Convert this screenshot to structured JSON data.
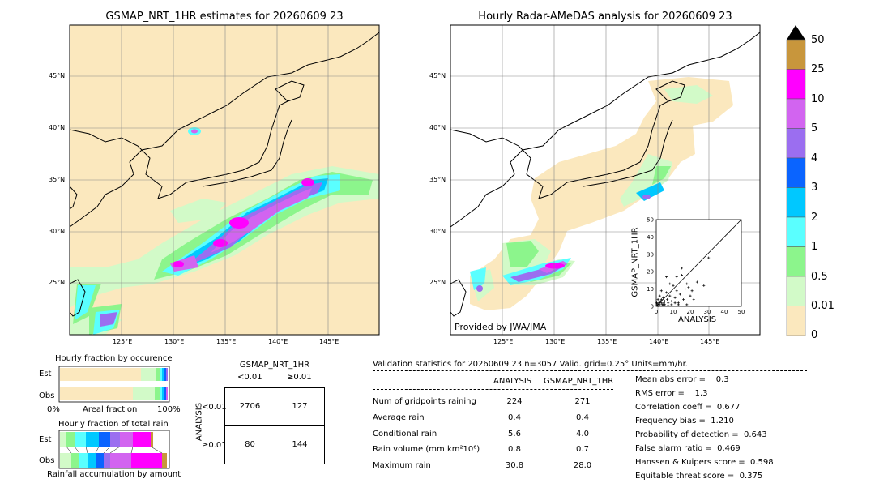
{
  "map_left": {
    "title": "GSMAP_NRT_1HR estimates for 20260609 23",
    "lat_labels": [
      "45°N",
      "40°N",
      "35°N",
      "30°N",
      "25°N"
    ],
    "lon_labels": [
      "125°E",
      "130°E",
      "135°E",
      "140°E",
      "145°E"
    ]
  },
  "map_right": {
    "title": "Hourly Radar-AMeDAS analysis for 20260609 23",
    "lat_labels": [
      "45°N",
      "40°N",
      "35°N",
      "30°N",
      "25°N"
    ],
    "lon_labels": [
      "125°E",
      "130°E",
      "135°E",
      "140°E",
      "145°E"
    ],
    "credit": "Provided by JWA/JMA"
  },
  "colorbar": {
    "labels": [
      "50",
      "25",
      "10",
      "5",
      "4",
      "3",
      "2",
      "1",
      "0.5",
      "0.01",
      "0"
    ],
    "colors": [
      "#c8963c",
      "#ff00ff",
      "#d264f0",
      "#9b6ef0",
      "#0a64ff",
      "#00c8ff",
      "#5affff",
      "#8cf58c",
      "#d2fac8",
      "#fbe8be"
    ]
  },
  "chart_data": [
    {
      "type": "scatter",
      "title": "",
      "xlabel": "ANALYSIS",
      "ylabel": "GSMAP_NRT_1HR",
      "xlim": [
        0,
        50
      ],
      "ylim": [
        0,
        50
      ],
      "ticks": [
        "0",
        "10",
        "20",
        "30",
        "40",
        "50"
      ],
      "points": [
        [
          0.5,
          0.5
        ],
        [
          1,
          0.3
        ],
        [
          1.5,
          2
        ],
        [
          2,
          1
        ],
        [
          2.5,
          3
        ],
        [
          3,
          2
        ],
        [
          3.5,
          1
        ],
        [
          4,
          5
        ],
        [
          4.5,
          2
        ],
        [
          5,
          3
        ],
        [
          6,
          8
        ],
        [
          6.5,
          4
        ],
        [
          7,
          2
        ],
        [
          8,
          6
        ],
        [
          9,
          3
        ],
        [
          10,
          12
        ],
        [
          11,
          5
        ],
        [
          12,
          9
        ],
        [
          13,
          2
        ],
        [
          14,
          7
        ],
        [
          15,
          18
        ],
        [
          16,
          4
        ],
        [
          17,
          10
        ],
        [
          18,
          13
        ],
        [
          19,
          11
        ],
        [
          20,
          6
        ],
        [
          21,
          9
        ],
        [
          22,
          4
        ],
        [
          24,
          14
        ],
        [
          28,
          12
        ],
        [
          6,
          17
        ],
        [
          8,
          13
        ],
        [
          12,
          17
        ],
        [
          3,
          9
        ],
        [
          2,
          6
        ],
        [
          1,
          4
        ],
        [
          0.3,
          2
        ],
        [
          30.8,
          28
        ],
        [
          15,
          22
        ],
        [
          18,
          1
        ],
        [
          5,
          1
        ],
        [
          7,
          0.5
        ],
        [
          9,
          1
        ],
        [
          11,
          2
        ],
        [
          13,
          1
        ],
        [
          3,
          4
        ],
        [
          4,
          1
        ],
        [
          1,
          1
        ],
        [
          2,
          2
        ],
        [
          0.5,
          1.5
        ]
      ]
    },
    {
      "type": "bar",
      "title": "Hourly fraction by occurence",
      "categories": [
        "Est",
        "Obs"
      ],
      "xlabels": [
        "0%",
        "Areal fraction",
        "100%"
      ]
    },
    {
      "type": "bar",
      "title": "Hourly fraction of total rain",
      "categories": [
        "Est",
        "Obs"
      ],
      "xlabel": "Rainfall accumulation by amount"
    },
    {
      "type": "table",
      "title": "GSMAP_NRT_1HR",
      "col_labels": [
        "<0.01",
        "≥0.01"
      ],
      "row_labels": [
        "<0.01",
        "≥0.01"
      ],
      "side_label": "ANALYSIS",
      "cells": [
        [
          "2706",
          "127"
        ],
        [
          "80",
          "144"
        ]
      ]
    }
  ],
  "stats": {
    "header": "Validation statistics for 20260609 23  n=3057 Valid. grid=0.25°  Units=mm/hr.",
    "col_a": "ANALYSIS",
    "col_b": "GSMAP_NRT_1HR",
    "rows": [
      {
        "label": "Num of gridpoints raining",
        "a": "224",
        "b": "271"
      },
      {
        "label": "Average rain",
        "a": "0.4",
        "b": "0.4"
      },
      {
        "label": "Conditional rain",
        "a": "5.6",
        "b": "4.0"
      },
      {
        "label": "Rain volume (mm km²10⁶)",
        "a": "0.8",
        "b": "0.7"
      },
      {
        "label": "Maximum rain",
        "a": "30.8",
        "b": "28.0"
      }
    ],
    "scores": [
      "Mean abs error =    0.3",
      "RMS error =    1.3",
      "Correlation coeff =  0.677",
      "Frequency bias =  1.210",
      "Probability of detection =  0.643",
      "False alarm ratio =  0.469",
      "Hanssen & Kuipers score =  0.598",
      "Equitable threat score =  0.375"
    ]
  }
}
